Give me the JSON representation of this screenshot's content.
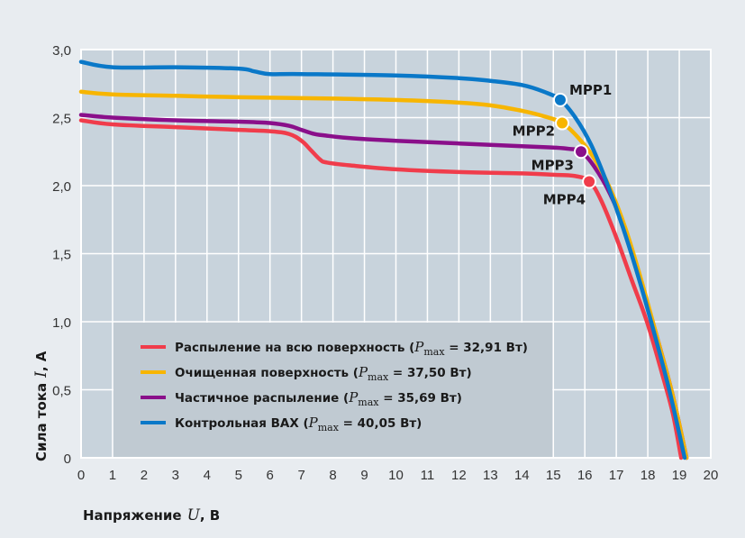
{
  "chart_data": {
    "type": "line",
    "title": "",
    "xlabel": "Напряжение",
    "xlabel_var": "U",
    "xlabel_unit": ", В",
    "ylabel": "Сила тока",
    "ylabel_var": "I",
    "ylabel_unit": ", А",
    "xlim": [
      0,
      20
    ],
    "ylim": [
      0,
      3.0
    ],
    "grid": true,
    "legend_position": "bottom-left",
    "x_ticks": [
      "0",
      "1",
      "2",
      "3",
      "4",
      "5",
      "6",
      "7",
      "8",
      "9",
      "10",
      "11",
      "12",
      "13",
      "14",
      "15",
      "16",
      "17",
      "18",
      "19",
      "20"
    ],
    "y_ticks": [
      "0",
      "0,5",
      "1,0",
      "1,5",
      "2,0",
      "2,5",
      "3,0"
    ],
    "y_tick_values": [
      0,
      0.5,
      1.0,
      1.5,
      2.0,
      2.5,
      3.0
    ],
    "series": [
      {
        "name": "Распыление на всю поверхность",
        "pmax_label": "P",
        "pmax_sub": "max",
        "pmax_value": " = 32,91 Вт)",
        "legend_prefix": "Распыление на всю поверхность (",
        "color": "#f03c4b",
        "x": [
          0,
          1,
          3,
          5,
          6,
          6.6,
          7.0,
          7.3,
          7.6,
          7.8,
          8.5,
          10,
          12,
          14,
          15,
          15.7,
          16.14,
          16.5,
          17.0,
          17.5,
          18.0,
          18.5,
          18.8,
          19.06
        ],
        "y": [
          2.48,
          2.45,
          2.43,
          2.41,
          2.4,
          2.38,
          2.33,
          2.26,
          2.19,
          2.17,
          2.15,
          2.12,
          2.1,
          2.09,
          2.08,
          2.07,
          2.03,
          1.9,
          1.62,
          1.3,
          0.98,
          0.58,
          0.32,
          0.0
        ]
      },
      {
        "name": "Очищенная поверхность",
        "legend_prefix": "Очищенная поверхность (",
        "pmax_label": "P",
        "pmax_sub": "max",
        "pmax_value": " = 37,50 Вт)",
        "color": "#f7b500",
        "x": [
          0,
          1,
          3,
          5,
          8,
          10,
          12,
          13,
          14,
          14.7,
          15.28,
          15.8,
          16.3,
          16.8,
          17.3,
          17.8,
          18.3,
          18.8,
          19.23
        ],
        "y": [
          2.69,
          2.67,
          2.66,
          2.65,
          2.64,
          2.63,
          2.61,
          2.59,
          2.55,
          2.51,
          2.46,
          2.35,
          2.2,
          1.98,
          1.68,
          1.3,
          0.88,
          0.45,
          0.0
        ]
      },
      {
        "name": "Частичное распыление",
        "legend_prefix": "Частичное распыление (",
        "pmax_label": "P",
        "pmax_sub": "max",
        "pmax_value": " = 35,69 Вт)",
        "color": "#8a0f8a",
        "x": [
          0,
          1,
          3,
          5,
          6,
          6.6,
          7.0,
          7.4,
          7.7,
          8.5,
          10,
          12,
          14,
          15,
          15.5,
          15.88,
          16.3,
          16.8,
          17.3,
          17.8,
          18.3,
          18.8,
          19.23
        ],
        "y": [
          2.52,
          2.5,
          2.48,
          2.47,
          2.46,
          2.44,
          2.41,
          2.38,
          2.37,
          2.35,
          2.33,
          2.31,
          2.29,
          2.28,
          2.27,
          2.25,
          2.14,
          1.94,
          1.66,
          1.28,
          0.88,
          0.45,
          0.0
        ]
      },
      {
        "name": "Контрольная ВАХ",
        "legend_prefix": "Контрольная ВАХ (",
        "pmax_label": "P",
        "pmax_sub": "max",
        "pmax_value": " = 40,05 Вт)",
        "color": "#0a78c8",
        "x": [
          0,
          1,
          3,
          5,
          5.5,
          6,
          7,
          10,
          12,
          13,
          14,
          14.7,
          15.22,
          15.7,
          16.2,
          16.7,
          17.2,
          17.7,
          18.2,
          18.7,
          19.17
        ],
        "y": [
          2.91,
          2.87,
          2.87,
          2.86,
          2.84,
          2.82,
          2.82,
          2.81,
          2.79,
          2.77,
          2.74,
          2.69,
          2.63,
          2.5,
          2.3,
          2.02,
          1.7,
          1.33,
          0.92,
          0.48,
          0.0
        ]
      }
    ],
    "mpp_points": [
      {
        "label": "MPP1",
        "x": 15.22,
        "y": 2.63,
        "color": "#0a78c8"
      },
      {
        "label": "MPP2",
        "x": 15.28,
        "y": 2.46,
        "color": "#f7b500"
      },
      {
        "label": "MPP3",
        "x": 15.88,
        "y": 2.25,
        "color": "#8a0f8a"
      },
      {
        "label": "MPP4",
        "x": 16.14,
        "y": 2.03,
        "color": "#f03c4b"
      }
    ]
  }
}
